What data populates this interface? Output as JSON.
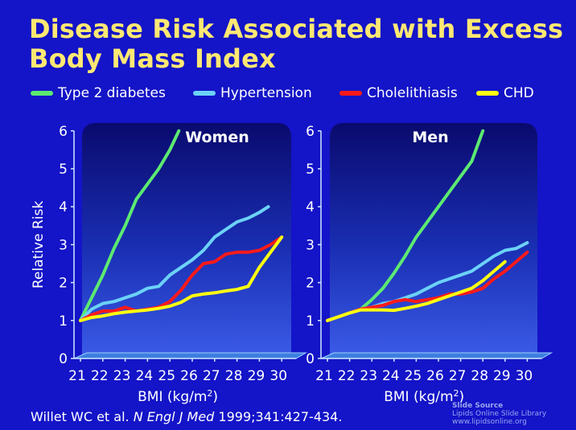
{
  "slide": {
    "title_line1": "Disease Risk Associated with Excess",
    "title_line2": "Body Mass Index",
    "citation_authors": "Willet WC et al.",
    "citation_journal": "N Engl J Med",
    "citation_ref": "1999;341:427-434.",
    "source_line1": "Slide Source",
    "source_line2": "Lipids Online Slide Library",
    "source_line3": "www.lipidsonline.org"
  },
  "colors": {
    "background": "#1414c8",
    "title": "#ffe873",
    "Type 2 diabetes": "#5cea72",
    "Hypertension": "#6cd2f7",
    "Cholelithiasis": "#ff1a1a",
    "CHD": "#ffff10"
  },
  "legend": [
    "Type 2 diabetes",
    "Hypertension",
    "Cholelithiasis",
    "CHD"
  ],
  "chart_data": [
    {
      "type": "line",
      "title": "Women",
      "xlabel": "BMI (kg/m²)",
      "ylabel": "Relative Risk",
      "x_ticks": [
        "21",
        "22",
        "23",
        "24",
        "25",
        "26",
        "27",
        "28",
        "29",
        "30"
      ],
      "y_ticks": [
        "0",
        "1",
        "2",
        "3",
        "4",
        "5",
        "6"
      ],
      "xlim": [
        21,
        30
      ],
      "ylim": [
        0,
        6
      ],
      "grid": false,
      "legend_position": "top",
      "series": [
        {
          "name": "Type 2 diabetes",
          "x": [
            21,
            21.5,
            22,
            22.5,
            23,
            23.5,
            24,
            24.5,
            25,
            25.4
          ],
          "y": [
            1.0,
            1.6,
            2.2,
            2.9,
            3.5,
            4.2,
            4.6,
            5.0,
            5.5,
            6.0
          ]
        },
        {
          "name": "Hypertension",
          "x": [
            21,
            21.5,
            22,
            22.5,
            23,
            23.5,
            24,
            24.5,
            25,
            25.5,
            26,
            26.5,
            27,
            27.5,
            28,
            28.5,
            29,
            29.4
          ],
          "y": [
            1.0,
            1.3,
            1.45,
            1.5,
            1.6,
            1.7,
            1.85,
            1.9,
            2.2,
            2.4,
            2.6,
            2.85,
            3.2,
            3.4,
            3.6,
            3.7,
            3.85,
            4.0
          ]
        },
        {
          "name": "Cholelithiasis",
          "x": [
            21,
            21.5,
            22,
            22.5,
            23,
            23.5,
            24,
            24.5,
            25,
            25.5,
            26,
            26.5,
            27,
            27.5,
            28,
            28.5,
            29,
            29.5,
            30
          ],
          "y": [
            1.0,
            1.15,
            1.25,
            1.25,
            1.35,
            1.25,
            1.3,
            1.35,
            1.5,
            1.8,
            2.2,
            2.5,
            2.55,
            2.75,
            2.8,
            2.8,
            2.85,
            3.0,
            3.2
          ]
        },
        {
          "name": "CHD",
          "x": [
            21,
            21.5,
            22,
            22.5,
            23,
            23.5,
            24,
            24.5,
            25,
            25.5,
            26,
            26.5,
            27,
            27.5,
            28,
            28.5,
            29,
            29.5,
            30
          ],
          "y": [
            1.0,
            1.08,
            1.12,
            1.18,
            1.22,
            1.25,
            1.28,
            1.32,
            1.38,
            1.48,
            1.65,
            1.7,
            1.73,
            1.78,
            1.82,
            1.9,
            2.4,
            2.8,
            3.2
          ]
        }
      ]
    },
    {
      "type": "line",
      "title": "Men",
      "xlabel": "BMI (kg/m²)",
      "ylabel": "",
      "x_ticks": [
        "21",
        "22",
        "23",
        "24",
        "25",
        "26",
        "27",
        "28",
        "29",
        "30"
      ],
      "y_ticks": [
        "0",
        "1",
        "2",
        "3",
        "4",
        "5",
        "6"
      ],
      "xlim": [
        21,
        30
      ],
      "ylim": [
        0,
        6
      ],
      "grid": false,
      "series": [
        {
          "name": "Type 2 diabetes",
          "x": [
            21,
            21.5,
            22,
            22.5,
            23,
            23.5,
            24,
            24.5,
            25,
            25.5,
            26,
            26.5,
            27,
            27.5,
            28
          ],
          "y": [
            1.0,
            1.1,
            1.2,
            1.3,
            1.55,
            1.85,
            2.25,
            2.7,
            3.2,
            3.6,
            4.0,
            4.4,
            4.8,
            5.2,
            6.0
          ]
        },
        {
          "name": "Hypertension",
          "x": [
            21,
            21.5,
            22,
            22.5,
            23,
            23.5,
            24,
            24.5,
            25,
            25.5,
            26,
            26.5,
            27,
            27.5,
            28,
            28.5,
            29,
            29.5,
            30
          ],
          "y": [
            1.0,
            1.1,
            1.2,
            1.3,
            1.35,
            1.45,
            1.5,
            1.6,
            1.7,
            1.85,
            2.0,
            2.1,
            2.2,
            2.3,
            2.5,
            2.7,
            2.85,
            2.9,
            3.05
          ]
        },
        {
          "name": "Cholelithiasis",
          "x": [
            21,
            21.5,
            22,
            22.5,
            23,
            23.5,
            24,
            24.5,
            25,
            25.5,
            26,
            26.5,
            27,
            27.5,
            28,
            28.5,
            29,
            29.5,
            30
          ],
          "y": [
            1.0,
            1.1,
            1.2,
            1.3,
            1.35,
            1.4,
            1.5,
            1.55,
            1.5,
            1.55,
            1.6,
            1.7,
            1.7,
            1.75,
            1.85,
            2.1,
            2.3,
            2.55,
            2.8
          ]
        },
        {
          "name": "CHD",
          "x": [
            21,
            21.5,
            22,
            22.5,
            23,
            23.5,
            24,
            24.5,
            25,
            25.5,
            26,
            26.5,
            27,
            27.5,
            28,
            28.5,
            29
          ],
          "y": [
            1.0,
            1.1,
            1.2,
            1.28,
            1.28,
            1.28,
            1.27,
            1.32,
            1.38,
            1.45,
            1.55,
            1.65,
            1.75,
            1.85,
            2.05,
            2.3,
            2.55
          ]
        }
      ]
    }
  ]
}
